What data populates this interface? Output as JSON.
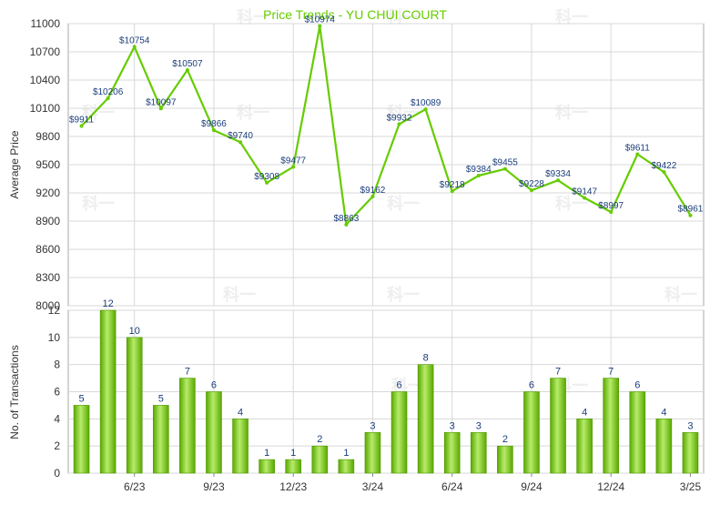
{
  "chart_data": [
    {
      "type": "line",
      "title": "Price Trends - YU CHUI COURT",
      "ylabel": "Average Price",
      "ylim": [
        8000,
        11000
      ],
      "yticks": [
        8000,
        8300,
        8600,
        8900,
        9200,
        9500,
        9800,
        10100,
        10400,
        10700,
        11000
      ],
      "grid": true,
      "color": "#66cc00",
      "series": [
        {
          "values": [
            9911,
            10206,
            10754,
            10097,
            10507,
            9866,
            9740,
            9308,
            9477,
            10974,
            8863,
            9162,
            9932,
            10089,
            9218,
            9384,
            9455,
            9228,
            9334,
            9147,
            8997,
            9611,
            9422,
            8961
          ],
          "labels": [
            "$9911",
            "$10206",
            "$10754",
            "$10097",
            "$10507",
            "$9866",
            "$9740",
            "$9308",
            "$9477",
            "$10974",
            "$8863",
            "$9162",
            "$9932",
            "$10089",
            "$9218",
            "$9384",
            "$9455",
            "$9228",
            "$9334",
            "$9147",
            "$8997",
            "$9611",
            "$9422",
            "$8961"
          ]
        }
      ]
    },
    {
      "type": "bar",
      "ylabel": "No. of Transactions",
      "ylim": [
        0,
        12
      ],
      "yticks": [
        0,
        2,
        4,
        6,
        8,
        10,
        12
      ],
      "grid": true,
      "color": "#66cc00",
      "values": [
        5,
        12,
        10,
        5,
        7,
        6,
        4,
        1,
        1,
        2,
        1,
        3,
        6,
        8,
        3,
        3,
        2,
        6,
        7,
        4,
        7,
        6,
        4,
        3
      ],
      "x_tick_labels": [
        "6/23",
        "9/23",
        "12/23",
        "3/24",
        "6/24",
        "9/24",
        "12/24",
        "3/25"
      ],
      "x_tick_positions": [
        2,
        5,
        8,
        11,
        14,
        17,
        20,
        23
      ]
    }
  ],
  "watermark": "科一"
}
